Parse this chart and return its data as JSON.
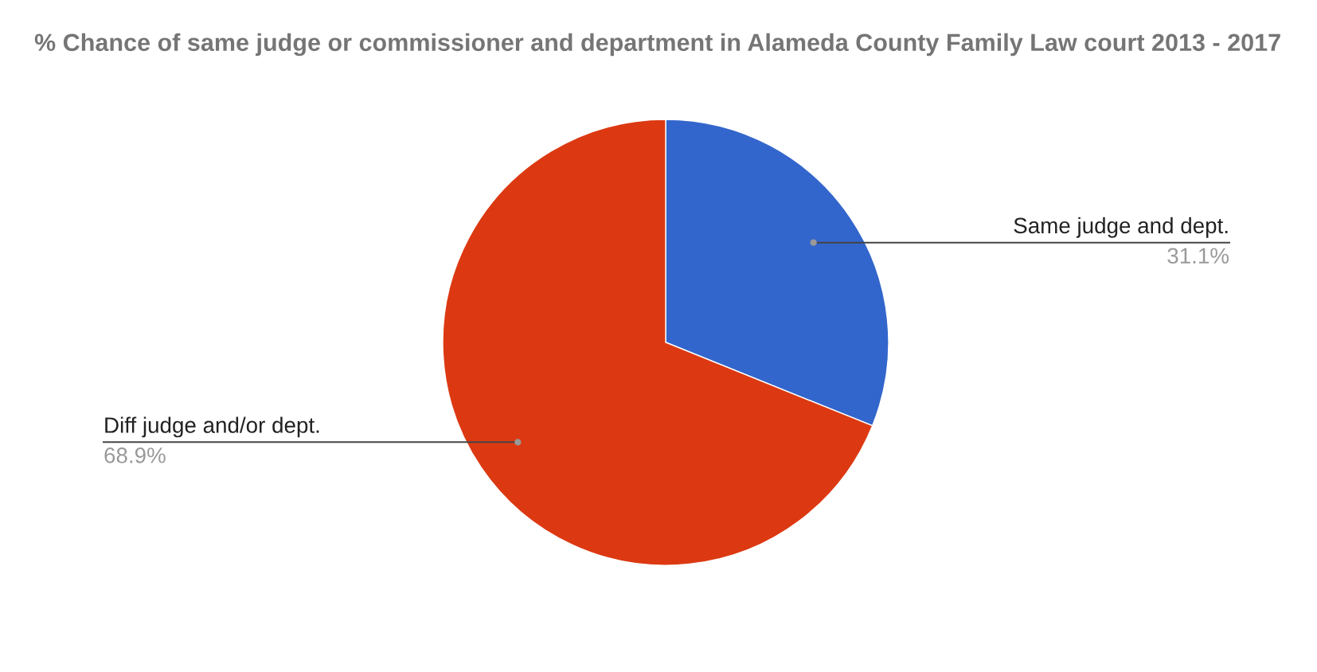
{
  "chart_data": {
    "type": "pie",
    "title": "% Chance of same judge or commissioner and department in Alameda County Family Law court 2013 - 2017",
    "categories": [
      "Same judge and dept.",
      "Diff judge and/or dept."
    ],
    "values": [
      31.1,
      68.9
    ],
    "value_labels": [
      "31.1%",
      "68.9%"
    ],
    "colors": [
      "#3366cc",
      "#dc3912"
    ],
    "legend": false
  }
}
